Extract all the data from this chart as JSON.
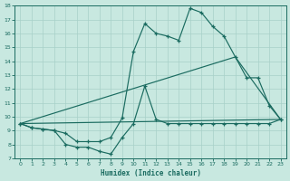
{
  "xlabel": "Humidex (Indice chaleur)",
  "bg_color": "#c8e8e0",
  "line_color": "#1a6b60",
  "grid_color": "#a8d0c8",
  "xlim_min": -0.5,
  "xlim_max": 23.5,
  "ylim_min": 7,
  "ylim_max": 18,
  "yticks": [
    7,
    8,
    9,
    10,
    11,
    12,
    13,
    14,
    15,
    16,
    17,
    18
  ],
  "xticks": [
    0,
    1,
    2,
    3,
    4,
    5,
    6,
    7,
    8,
    9,
    10,
    11,
    12,
    13,
    14,
    15,
    16,
    17,
    18,
    19,
    20,
    21,
    22,
    23
  ],
  "series_top_x": [
    0,
    1,
    2,
    3,
    4,
    5,
    6,
    7,
    8,
    9,
    10,
    11,
    12,
    13,
    14,
    15,
    16,
    17,
    18,
    19,
    20,
    21,
    22,
    23
  ],
  "series_top_y": [
    9.5,
    9.2,
    9.1,
    9.0,
    8.8,
    8.2,
    8.2,
    8.2,
    8.5,
    9.9,
    14.7,
    16.7,
    16.0,
    15.8,
    15.5,
    17.8,
    17.5,
    16.5,
    15.8,
    14.3,
    12.8,
    12.8,
    10.8,
    9.8
  ],
  "series_bot_x": [
    0,
    1,
    2,
    3,
    4,
    5,
    6,
    7,
    8,
    9,
    10,
    11,
    12,
    13,
    14,
    15,
    16,
    17,
    18,
    19,
    20,
    21,
    22,
    23
  ],
  "series_bot_y": [
    9.5,
    9.2,
    9.1,
    9.0,
    8.0,
    7.8,
    7.8,
    7.5,
    7.3,
    8.5,
    9.5,
    12.2,
    9.8,
    9.5,
    9.5,
    9.5,
    9.5,
    9.5,
    9.5,
    9.5,
    9.5,
    9.5,
    9.5,
    9.8
  ],
  "trend1_x": [
    0,
    23
  ],
  "trend1_y": [
    9.5,
    9.8
  ],
  "trend2_x": [
    0,
    19,
    23
  ],
  "trend2_y": [
    9.5,
    14.3,
    9.8
  ]
}
